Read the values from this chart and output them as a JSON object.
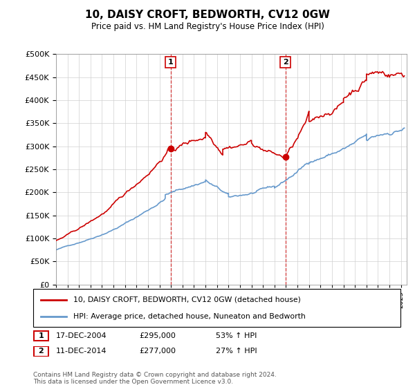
{
  "title": "10, DAISY CROFT, BEDWORTH, CV12 0GW",
  "subtitle": "Price paid vs. HM Land Registry's House Price Index (HPI)",
  "legend_line1": "10, DAISY CROFT, BEDWORTH, CV12 0GW (detached house)",
  "legend_line2": "HPI: Average price, detached house, Nuneaton and Bedworth",
  "sale1_date": "17-DEC-2004",
  "sale1_price": "£295,000",
  "sale1_hpi": "53% ↑ HPI",
  "sale1_year": 2004.96,
  "sale1_value": 295000,
  "sale2_date": "11-DEC-2014",
  "sale2_price": "£277,000",
  "sale2_hpi": "27% ↑ HPI",
  "sale2_year": 2014.95,
  "sale2_value": 277000,
  "footer": "Contains HM Land Registry data © Crown copyright and database right 2024.\nThis data is licensed under the Open Government Licence v3.0.",
  "red_color": "#cc0000",
  "blue_color": "#6699cc",
  "ylim": [
    0,
    500000
  ],
  "yticks": [
    0,
    50000,
    100000,
    150000,
    200000,
    250000,
    300000,
    350000,
    400000,
    450000,
    500000
  ],
  "xmin": 1995.0,
  "xmax": 2025.5
}
